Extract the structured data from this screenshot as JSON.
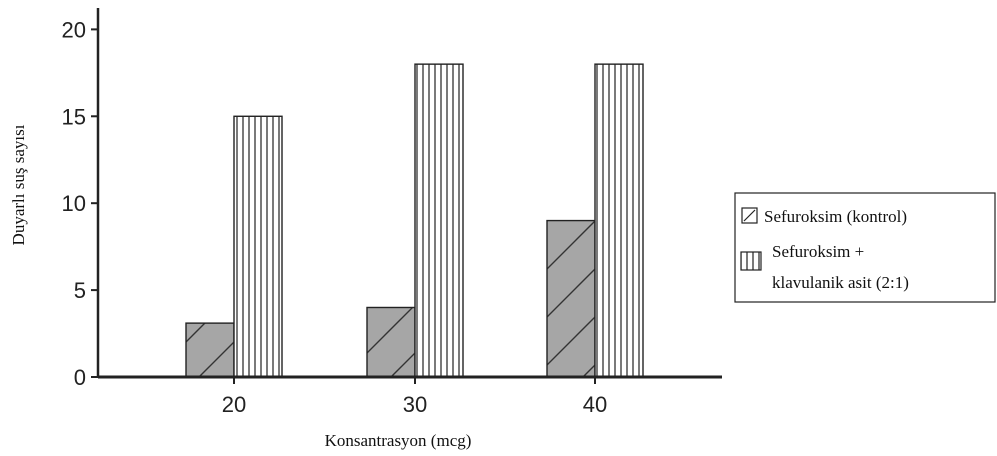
{
  "chart_data": {
    "type": "bar",
    "categories": [
      "20",
      "30",
      "40"
    ],
    "series": [
      {
        "name": "Sefuroksim (kontrol)",
        "values": [
          3.1,
          4,
          9
        ],
        "pattern": "diagonal-hatch",
        "fill_color": "#a6a6a6"
      },
      {
        "name": "Sefuroksim + klavulanik asit (2:1)",
        "values": [
          15,
          18,
          18
        ],
        "pattern": "vertical-stripes",
        "fill_color": "#ffffff"
      }
    ],
    "xlabel": "Konsantrasyon (mcg)",
    "ylabel": "Duyarlı suş sayısı",
    "ylim": [
      0,
      21
    ],
    "yticks": [
      0,
      5,
      10,
      15,
      20
    ],
    "grid": false,
    "legend_position": "right",
    "legend": {
      "entry_1": "Sefuroksim (kontrol)",
      "entry_2_line_1": "Sefuroksim +",
      "entry_2_line_2": "klavulanik asit (2:1)"
    }
  }
}
